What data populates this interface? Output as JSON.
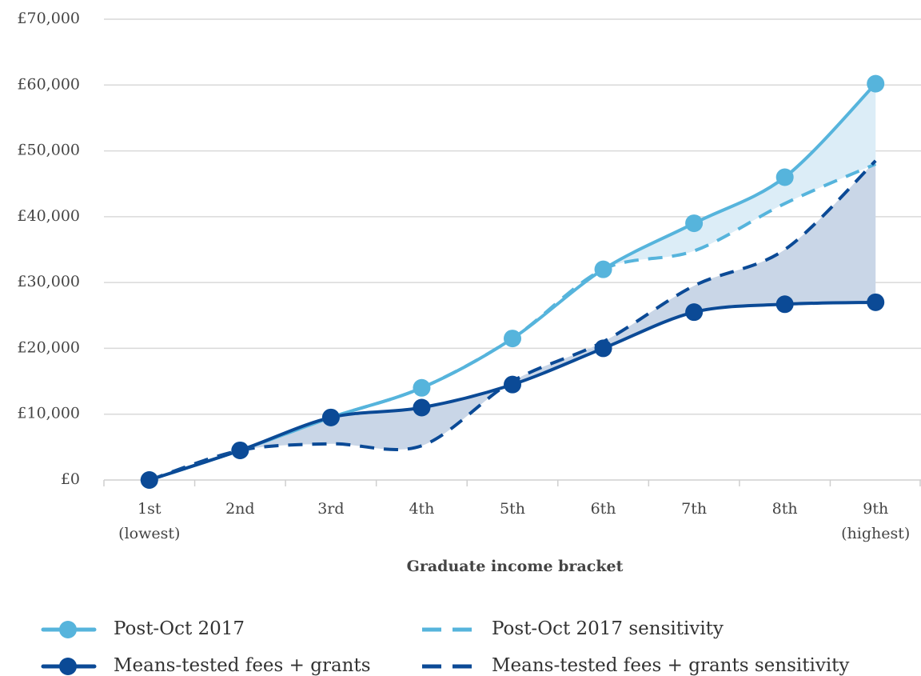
{
  "chart_data": {
    "type": "line",
    "x_label": "Graduate income bracket",
    "categories": [
      "1st\n(lowest)",
      "2nd",
      "3rd",
      "4th",
      "5th",
      "6th",
      "7th",
      "8th",
      "9th\n(highest)"
    ],
    "series": [
      {
        "name": "Post-Oct 2017",
        "color": "#56b4dc",
        "style": "solid",
        "markers": true,
        "values": [
          0,
          4500,
          9500,
          14000,
          21500,
          32000,
          39000,
          46000,
          60200
        ]
      },
      {
        "name": "Means-tested fees + grants",
        "color": "#0b4a96",
        "style": "solid",
        "markers": true,
        "values": [
          0,
          4500,
          9500,
          11000,
          14500,
          20000,
          25500,
          26700,
          27000
        ]
      },
      {
        "name": "Post-Oct 2017 sensitivity",
        "color": "#56b4dc",
        "style": "dashed",
        "markers": false,
        "values": [
          0,
          4500,
          9500,
          14000,
          21500,
          32000,
          34800,
          42000,
          48000
        ]
      },
      {
        "name": "Means-tested fees + grants sensitivity",
        "color": "#0b4a96",
        "style": "dashed",
        "markers": false,
        "values": [
          0,
          4500,
          5500,
          5200,
          15000,
          21000,
          29500,
          35000,
          48500
        ]
      }
    ],
    "fill_between": [
      {
        "series": [
          0,
          2
        ],
        "color": "#dcedf7"
      },
      {
        "series": [
          1,
          3
        ],
        "color": "#c9d6e7"
      }
    ],
    "ylim": [
      0,
      70000
    ],
    "yticks": [
      {
        "value": 0,
        "label": "£0"
      },
      {
        "value": 10000,
        "label": "£10,000"
      },
      {
        "value": 20000,
        "label": "£20,000"
      },
      {
        "value": 30000,
        "label": "£30,000"
      },
      {
        "value": 40000,
        "label": "£40,000"
      },
      {
        "value": 50000,
        "label": "£50,000"
      },
      {
        "value": 60000,
        "label": "£60,000"
      },
      {
        "value": 70000,
        "label": "£70,000"
      }
    ],
    "grid": true
  }
}
